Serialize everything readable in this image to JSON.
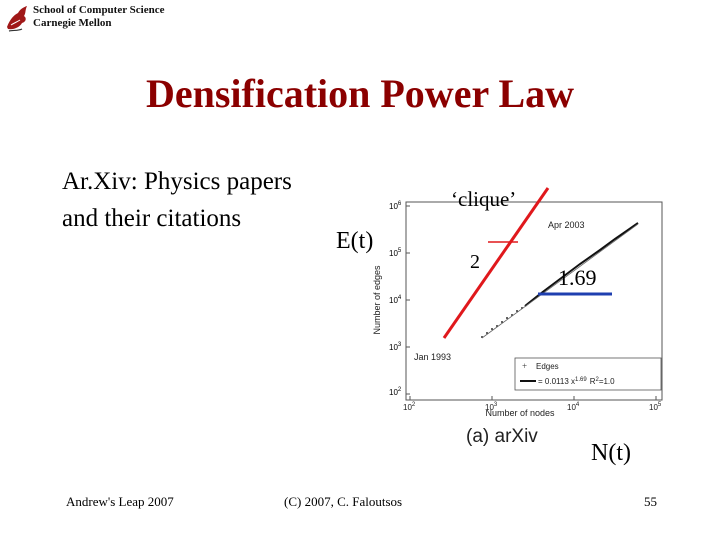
{
  "header": {
    "school_line1": "School of Computer Science",
    "school_line2": "Carnegie Mellon",
    "logo_icon": "cmu-dragon-logo-icon"
  },
  "title": "Densification Power Law",
  "description": {
    "line1": "Ar.Xiv: Physics papers",
    "line2": "and their citations"
  },
  "labels": {
    "y_label": "E(t)",
    "x_label": "N(t)",
    "clique": "‘clique’",
    "slope_two": "2",
    "slope_exponent": "1.69"
  },
  "figure": {
    "caption": "(a)  arXiv",
    "ylabel": "Number of edges",
    "xlabel": "Number of nodes",
    "start_label": "Jan 1993",
    "end_label": "Apr 2003",
    "legend_points": "Edges",
    "legend_fit": "= 0.0113 x",
    "legend_fit_exp": "1.69",
    "legend_fit_r2": "R",
    "legend_r2_value": "=1.0",
    "y_ticks": [
      "10",
      "10",
      "10",
      "10",
      "10"
    ],
    "y_tick_exps": [
      "2",
      "3",
      "4",
      "5",
      "6"
    ],
    "x_ticks": [
      "10",
      "10",
      "10",
      "10"
    ],
    "x_tick_exps": [
      "2",
      "3",
      "4",
      "5"
    ]
  },
  "colors": {
    "title": "#8b0000",
    "annotation_red": "#e0181c",
    "annotation_blue": "#1f3fb0"
  },
  "footer": {
    "left": "Andrew's Leap 2007",
    "center": "(C) 2007, C. Faloutsos",
    "page": "55"
  }
}
